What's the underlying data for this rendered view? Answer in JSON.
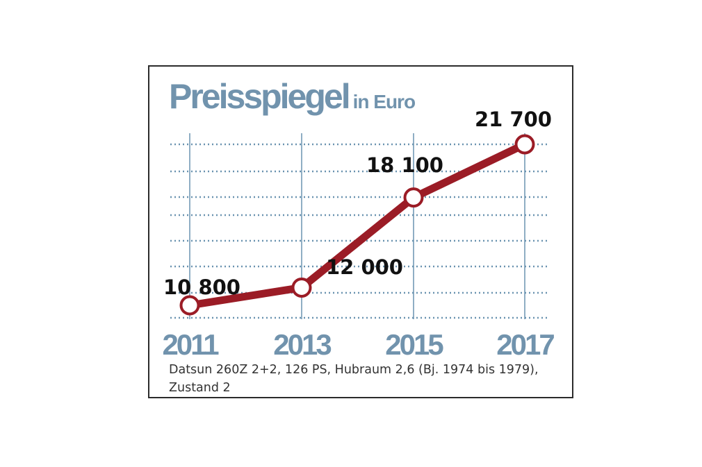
{
  "title": "Preisspiegel",
  "title_unit": "in Euro",
  "caption": "Datsun 260Z 2+2, 126 PS, Hubraum 2,6 (Bj. 1974 bis 1979), Zustand 2",
  "colors": {
    "line": "#9b1c26",
    "grid": "#6a93b0",
    "axis_labels": "#7193ad",
    "marker_fill": "#ffffff"
  },
  "chart_data": {
    "type": "line",
    "title": "Preisspiegel",
    "ylabel": "in Euro",
    "categories": [
      "2011",
      "2013",
      "2015",
      "2017"
    ],
    "series": [
      {
        "values": [
          10800,
          12000,
          18100,
          21700
        ],
        "labels": [
          "10 800",
          "12 000",
          "18 100",
          "21 700"
        ]
      }
    ],
    "ylim": [
      10000,
      22000
    ],
    "grid": "dotted horizontal and vertical",
    "legend": "none"
  }
}
